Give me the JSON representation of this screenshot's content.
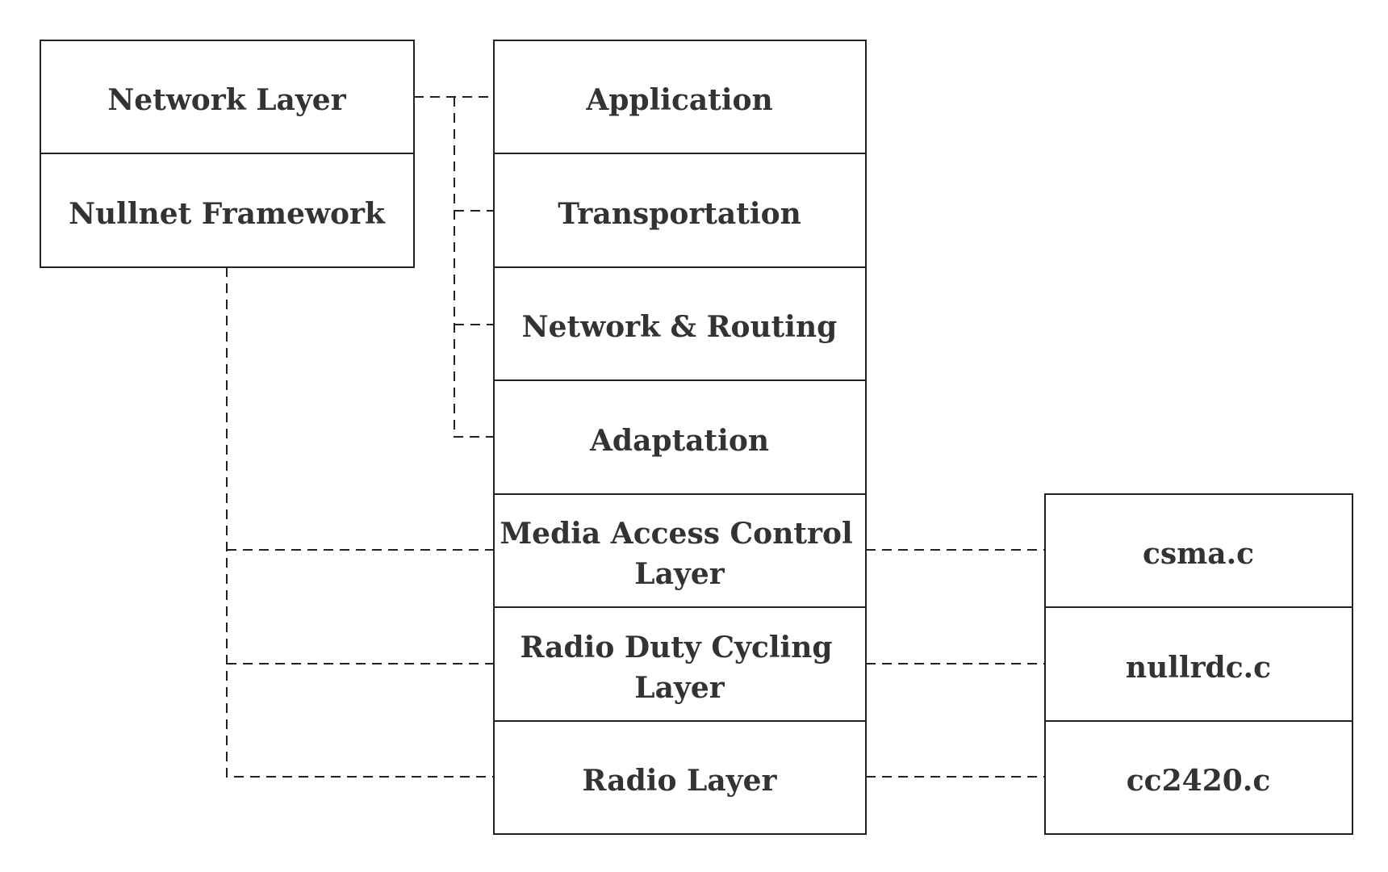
{
  "left_stack": [
    {
      "label": "Network Layer"
    },
    {
      "label": "Nullnet Framework"
    }
  ],
  "center_stack": [
    {
      "lines": [
        "Application"
      ]
    },
    {
      "lines": [
        "Transportation"
      ]
    },
    {
      "lines": [
        "Network & Routing"
      ]
    },
    {
      "lines": [
        "Adaptation"
      ]
    },
    {
      "lines": [
        "Media Access Control",
        "Layer"
      ]
    },
    {
      "lines": [
        "Radio Duty Cycling",
        "Layer"
      ]
    },
    {
      "lines": [
        "Radio Layer"
      ]
    }
  ],
  "right_stack": [
    {
      "label": "csma.c"
    },
    {
      "label": "nullrdc.c"
    },
    {
      "label": "cc2420.c"
    }
  ]
}
